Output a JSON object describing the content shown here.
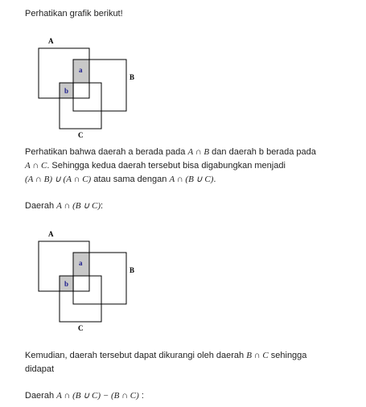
{
  "intro": "Perhatikan grafik berikut!",
  "diagram1": {
    "set_a": "A",
    "set_b": "B",
    "set_c": "C",
    "region_a": "a",
    "region_b": "b"
  },
  "para1": {
    "t1": "Perhatikan bahwa daerah a berada pada ",
    "m1": "A ∩ B",
    "t2": " dan daerah b berada pada ",
    "m2": "A ∩ C",
    "t3": ". Sehingga kedua daerah tersebut bisa digabungkan menjadi",
    "m3": "(A ∩ B) ∪ (A ∩ C)",
    "t4": " atau sama dengan ",
    "m4": "A ∩ (B ∪ C)",
    "t5": "."
  },
  "para2": {
    "t1": "Daerah ",
    "m1": "A ∩ (B ∪ C)",
    "t2": ":"
  },
  "diagram2": {
    "set_a": "A",
    "set_b": "B",
    "set_c": "C",
    "region_a": "a",
    "region_b": "b"
  },
  "para3": {
    "t1": "Kemudian, daerah tersebut dapat dikurangi oleh daerah ",
    "m1": "B ∩ C",
    "t2": " sehingga",
    "t3": "didapat"
  },
  "para4": {
    "t1": "Daerah ",
    "m1": "A ∩ (B ∪ C) − (B ∩ C)",
    "t2": " :"
  }
}
